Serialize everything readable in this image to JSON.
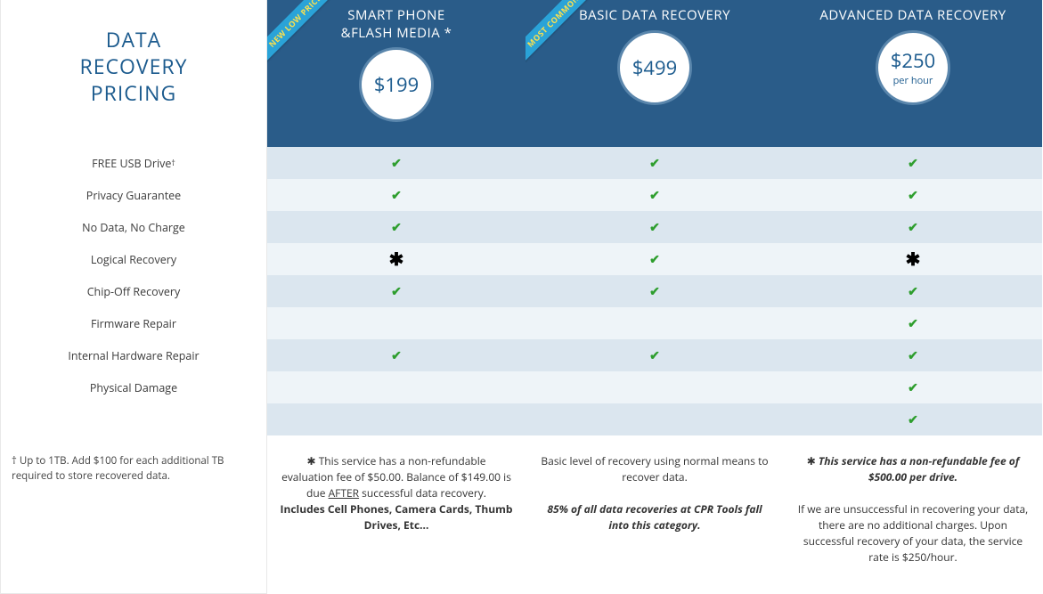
{
  "colors": {
    "header_bg": "#2a5c89",
    "header_text": "#ffffff",
    "accent_text": "#1c5b8e",
    "row_alt": "#dbe6ef",
    "row_base": "#eef4f8",
    "check": "#2e9e2e",
    "ribbon_bg": "#2aa3d8",
    "ribbon_text": "#fce04d"
  },
  "label_header": "DATA RECOVERY PRICING",
  "features": [
    "FREE USB Drive †",
    "Privacy Guarantee",
    "No Data, No Charge",
    "Logical Recovery",
    "Chip-Off Recovery",
    "Firmware Repair",
    "Internal Hardware Repair",
    "Physical Damage",
    ""
  ],
  "label_footer": "† Up to 1TB. Add $100 for each additional TB required to store recovered data.",
  "plans": [
    {
      "ribbon": "NEW LOW PRICE",
      "title_line1": "SMART PHONE",
      "title_line2": "&FLASH MEDIA *",
      "price": "$199",
      "price_sub": "",
      "cells": [
        "check",
        "check",
        "check",
        "star",
        "check",
        "",
        "check",
        "",
        ""
      ],
      "footer_html": "✱ This service has a non-refundable evaluation fee of $50.00. Balance of $149.00 is due <span class='under'>AFTER</span> successful data recovery.<br><span class='bold'>Includes Cell Phones, Camera Cards, Thumb Drives, Etc...</span>"
    },
    {
      "ribbon": "MOST COMMON",
      "title_line1": "BASIC DATA RECOVERY",
      "title_line2": "",
      "price": "$499",
      "price_sub": "",
      "cells": [
        "check",
        "check",
        "check",
        "check",
        "check",
        "",
        "check",
        "",
        ""
      ],
      "footer_html": "Basic level of recovery using normal means to recover data.<br><br><span class='bold'><em>85% of all data recoveries at CPR Tools fall into this category.</em></span>"
    },
    {
      "ribbon": "",
      "title_line1": "ADVANCED DATA RECOVERY",
      "title_line2": "",
      "price": "$250",
      "price_sub": "per hour",
      "cells": [
        "check",
        "check",
        "check",
        "star",
        "check",
        "check",
        "check",
        "check",
        "check"
      ],
      "footer_html": "✱ <span class='bold'><em>This service has a non-refundable fee of $500.00 per drive.</em></span><br><br>If we are unsuccessful in recovering your data, there are no additional charges. Upon successful recovery of your data, the service rate is $250/hour."
    }
  ]
}
